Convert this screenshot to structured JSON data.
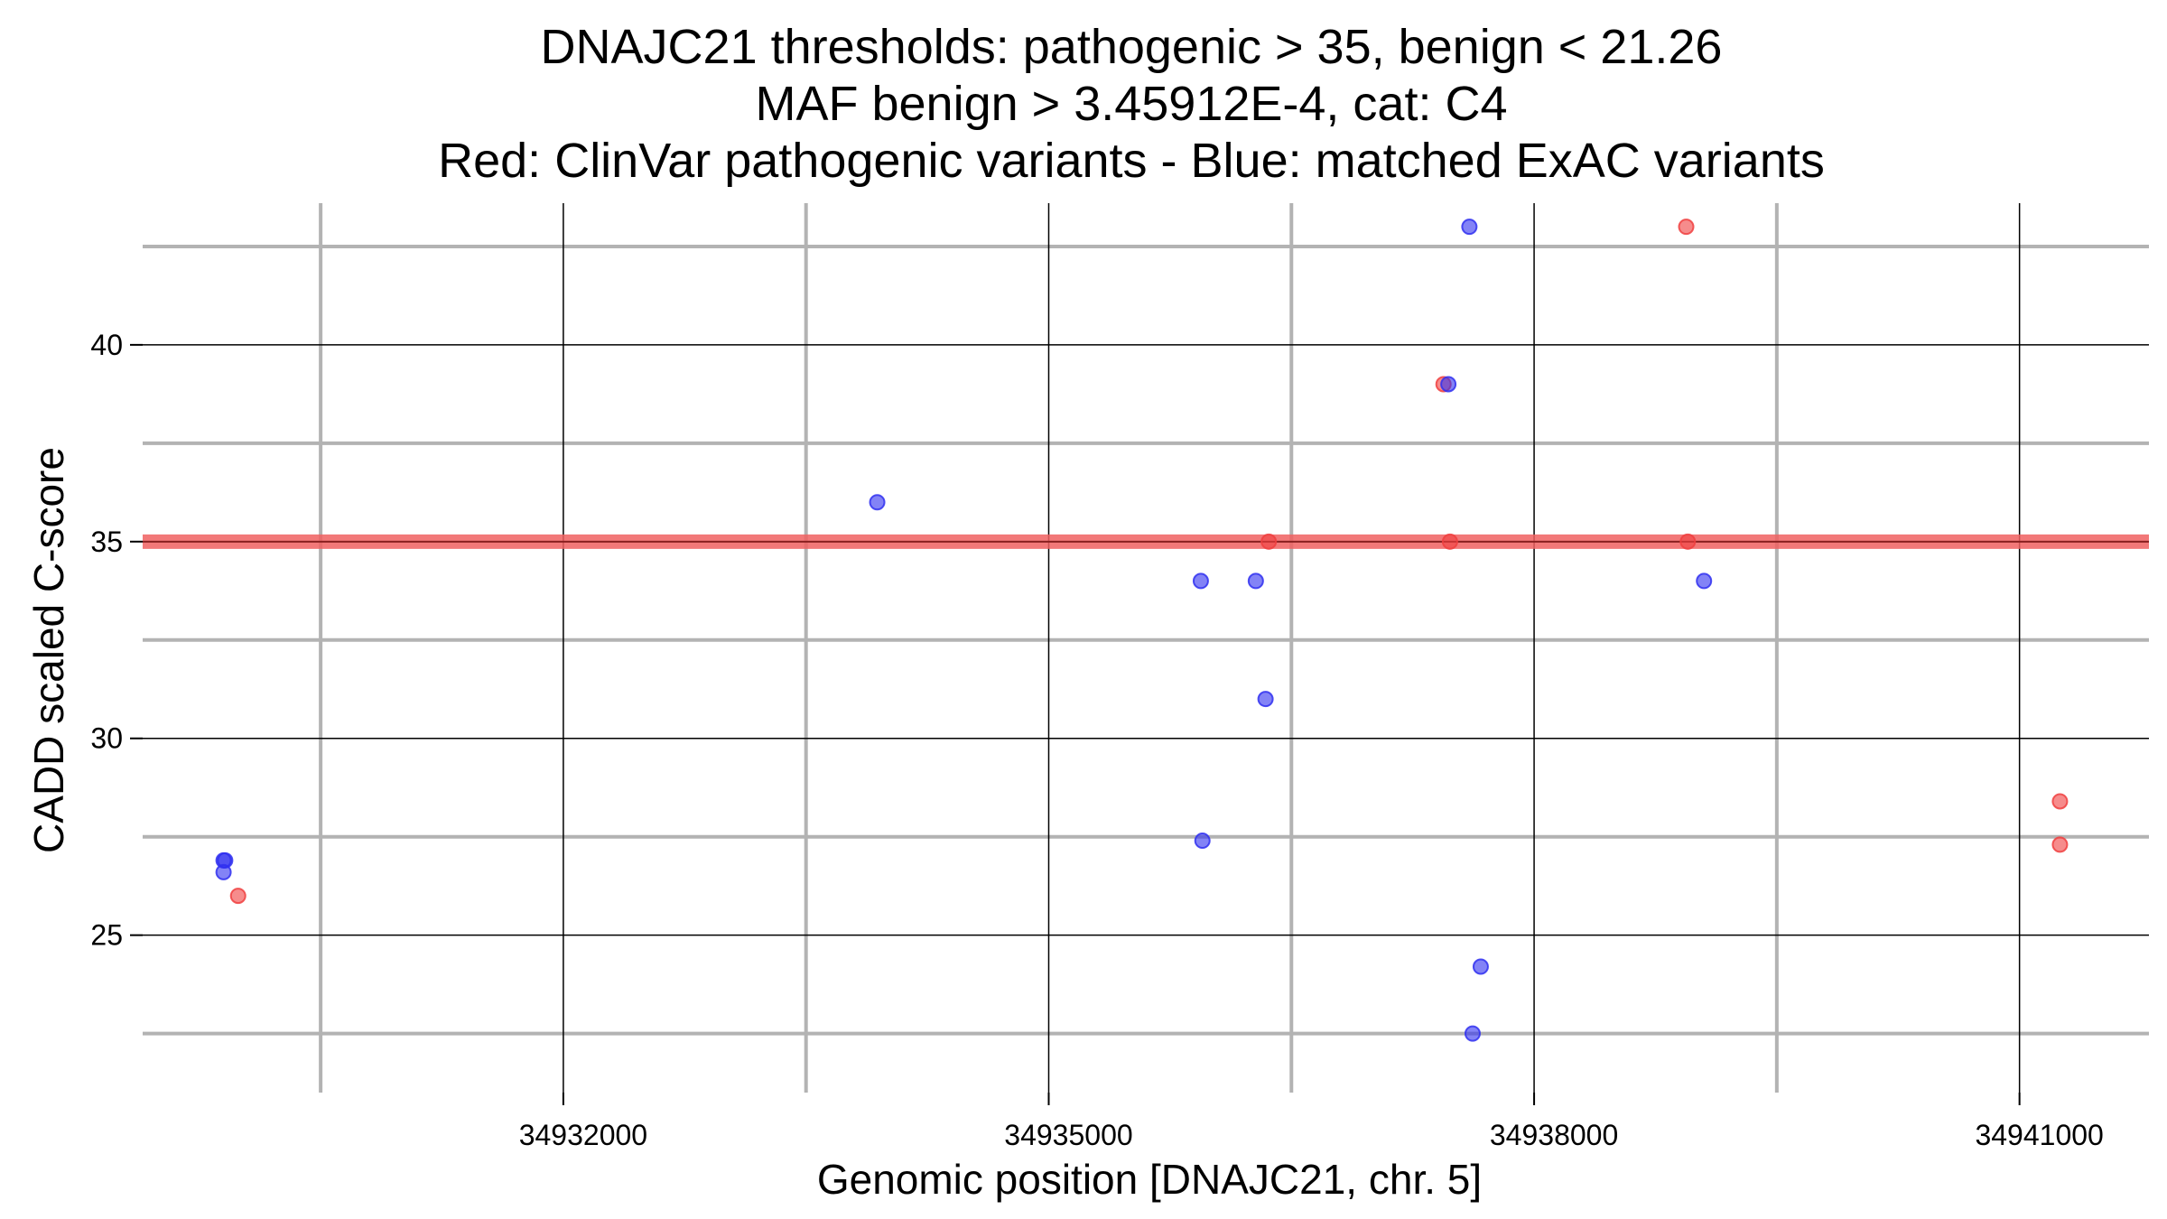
{
  "chart_data": {
    "type": "scatter",
    "title_lines": [
      "DNAJC21 thresholds: pathogenic > 35, benign < 21.26",
      "MAF benign > 3.45912E-4, cat: C4",
      "Red: ClinVar pathogenic variants - Blue: matched ExAC variants"
    ],
    "xlabel": "Genomic position [DNAJC21, chr. 5]",
    "ylabel": "CADD scaled C-score",
    "xlim": [
      34929400,
      34941800
    ],
    "ylim": [
      21.0,
      43.6
    ],
    "x_ticks": [
      34932000,
      34935000,
      34938000,
      34941000
    ],
    "x_tick_labels": [
      "34932000",
      "34935000",
      "34938000",
      "34941000"
    ],
    "x_minor_grid": [
      34930500,
      34933500,
      34936500,
      34939500
    ],
    "y_ticks": [
      25,
      30,
      35,
      40
    ],
    "y_tick_labels": [
      "25",
      "30",
      "35",
      "40"
    ],
    "y_minor_grid": [
      22.5,
      27.5,
      32.5,
      37.5,
      42.5
    ],
    "grid": true,
    "threshold_line": {
      "y": 35,
      "color": "#f06060"
    },
    "series": [
      {
        "color": "#f04040",
        "points": [
          {
            "x": 34929990,
            "y": 26.0
          },
          {
            "x": 34937440,
            "y": 39.0
          },
          {
            "x": 34937480,
            "y": 35.0
          },
          {
            "x": 34936360,
            "y": 35.0
          },
          {
            "x": 34938940,
            "y": 43.0
          },
          {
            "x": 34938950,
            "y": 35.0
          },
          {
            "x": 34941250,
            "y": 28.4
          },
          {
            "x": 34941250,
            "y": 27.3
          }
        ]
      },
      {
        "color": "#3030f0",
        "points": [
          {
            "x": 34929900,
            "y": 26.9
          },
          {
            "x": 34929910,
            "y": 26.9
          },
          {
            "x": 34929900,
            "y": 26.6
          },
          {
            "x": 34933940,
            "y": 36.0
          },
          {
            "x": 34935940,
            "y": 34.0
          },
          {
            "x": 34936280,
            "y": 34.0
          },
          {
            "x": 34936340,
            "y": 31.0
          },
          {
            "x": 34935950,
            "y": 27.4
          },
          {
            "x": 34937470,
            "y": 39.0
          },
          {
            "x": 34937600,
            "y": 43.0
          },
          {
            "x": 34937620,
            "y": 22.5
          },
          {
            "x": 34937670,
            "y": 24.2
          },
          {
            "x": 34939050,
            "y": 34.0
          }
        ]
      }
    ]
  }
}
